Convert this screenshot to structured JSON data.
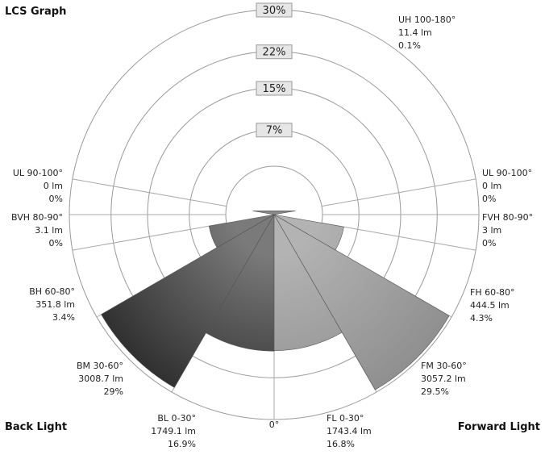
{
  "title": "LCS Graph",
  "corner_labels": {
    "back": "Back Light",
    "forward": "Forward Light"
  },
  "zero_label": "0°",
  "ring_labels": [
    "7%",
    "15%",
    "22%",
    "30%"
  ],
  "colors": {
    "back_dark": "#2e2e2e",
    "back_mid": "#666666",
    "forward_mid": "#8f8f8f",
    "forward_light": "#aaaaaa"
  },
  "chart_data": {
    "type": "polar-bar",
    "title": "LCS Graph",
    "r_max_percent": 30,
    "rings_percent": [
      7,
      15,
      22,
      30
    ],
    "zones": [
      {
        "label": "UH 100-180°",
        "lumens": "11.4 lm",
        "percent": "0.1%",
        "value": 0.1,
        "side": "up",
        "start_deg": 100,
        "end_deg": 180
      },
      {
        "label": "UL 90-100°",
        "lumens": "0 lm",
        "percent": "0%",
        "value": 0,
        "side": "back",
        "start_deg": 90,
        "end_deg": 100
      },
      {
        "label": "BVH 80-90°",
        "lumens": "3.1 lm",
        "percent": "0%",
        "value": 0,
        "side": "back",
        "start_deg": 80,
        "end_deg": 90
      },
      {
        "label": "BH 60-80°",
        "lumens": "351.8 lm",
        "percent": "3.4%",
        "value": 3.4,
        "side": "back",
        "start_deg": 60,
        "end_deg": 80
      },
      {
        "label": "BM 30-60°",
        "lumens": "3008.7 lm",
        "percent": "29%",
        "value": 29,
        "side": "back",
        "start_deg": 30,
        "end_deg": 60
      },
      {
        "label": "BL 0-30°",
        "lumens": "1749.1 lm",
        "percent": "16.9%",
        "value": 16.9,
        "side": "back",
        "start_deg": 0,
        "end_deg": 30
      },
      {
        "label": "FL 0-30°",
        "lumens": "1743.4 lm",
        "percent": "16.8%",
        "value": 16.8,
        "side": "forward",
        "start_deg": 0,
        "end_deg": 30
      },
      {
        "label": "FM 30-60°",
        "lumens": "3057.2 lm",
        "percent": "29.5%",
        "value": 29.5,
        "side": "forward",
        "start_deg": 30,
        "end_deg": 60
      },
      {
        "label": "FH 60-80°",
        "lumens": "444.5 lm",
        "percent": "4.3%",
        "value": 4.3,
        "side": "forward",
        "start_deg": 60,
        "end_deg": 80
      },
      {
        "label": "FVH 80-90°",
        "lumens": "3 lm",
        "percent": "0%",
        "value": 0,
        "side": "forward",
        "start_deg": 80,
        "end_deg": 90
      },
      {
        "label": "UL 90-100°",
        "lumens": "0 lm",
        "percent": "0%",
        "value": 0,
        "side": "forward",
        "start_deg": 90,
        "end_deg": 100
      }
    ]
  }
}
